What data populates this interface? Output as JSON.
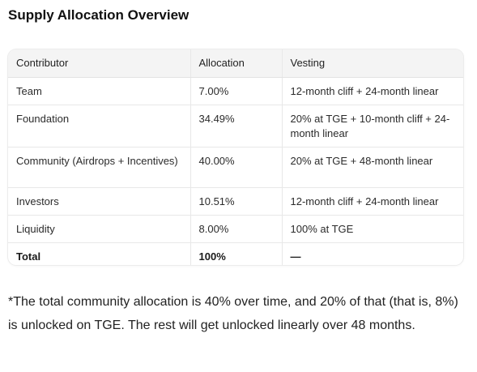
{
  "heading": "Supply Allocation Overview",
  "table": {
    "headers": [
      "Contributor",
      "Allocation",
      "Vesting"
    ],
    "rows": [
      {
        "contributor": "Team",
        "allocation": "7.00%",
        "vesting": "12-month cliff + 24-month linear"
      },
      {
        "contributor": "Foundation",
        "allocation": "34.49%",
        "vesting": "20% at TGE + 10-month cliff + 24-month linear"
      },
      {
        "contributor": "Community (Airdrops + Incentives)",
        "allocation": "40.00%",
        "vesting": "20% at TGE + 48-month linear"
      },
      {
        "contributor": "Investors",
        "allocation": "10.51%",
        "vesting": "12-month cliff + 24-month linear"
      },
      {
        "contributor": "Liquidity",
        "allocation": "8.00%",
        "vesting": "100% at TGE"
      },
      {
        "contributor": "Total",
        "allocation": "100%",
        "vesting": "—"
      }
    ]
  },
  "note": "*The total community allocation is 40% over time, and 20% of that (that is, 8%) is unlocked on TGE.   The rest will get unlocked linearly over 48 months."
}
